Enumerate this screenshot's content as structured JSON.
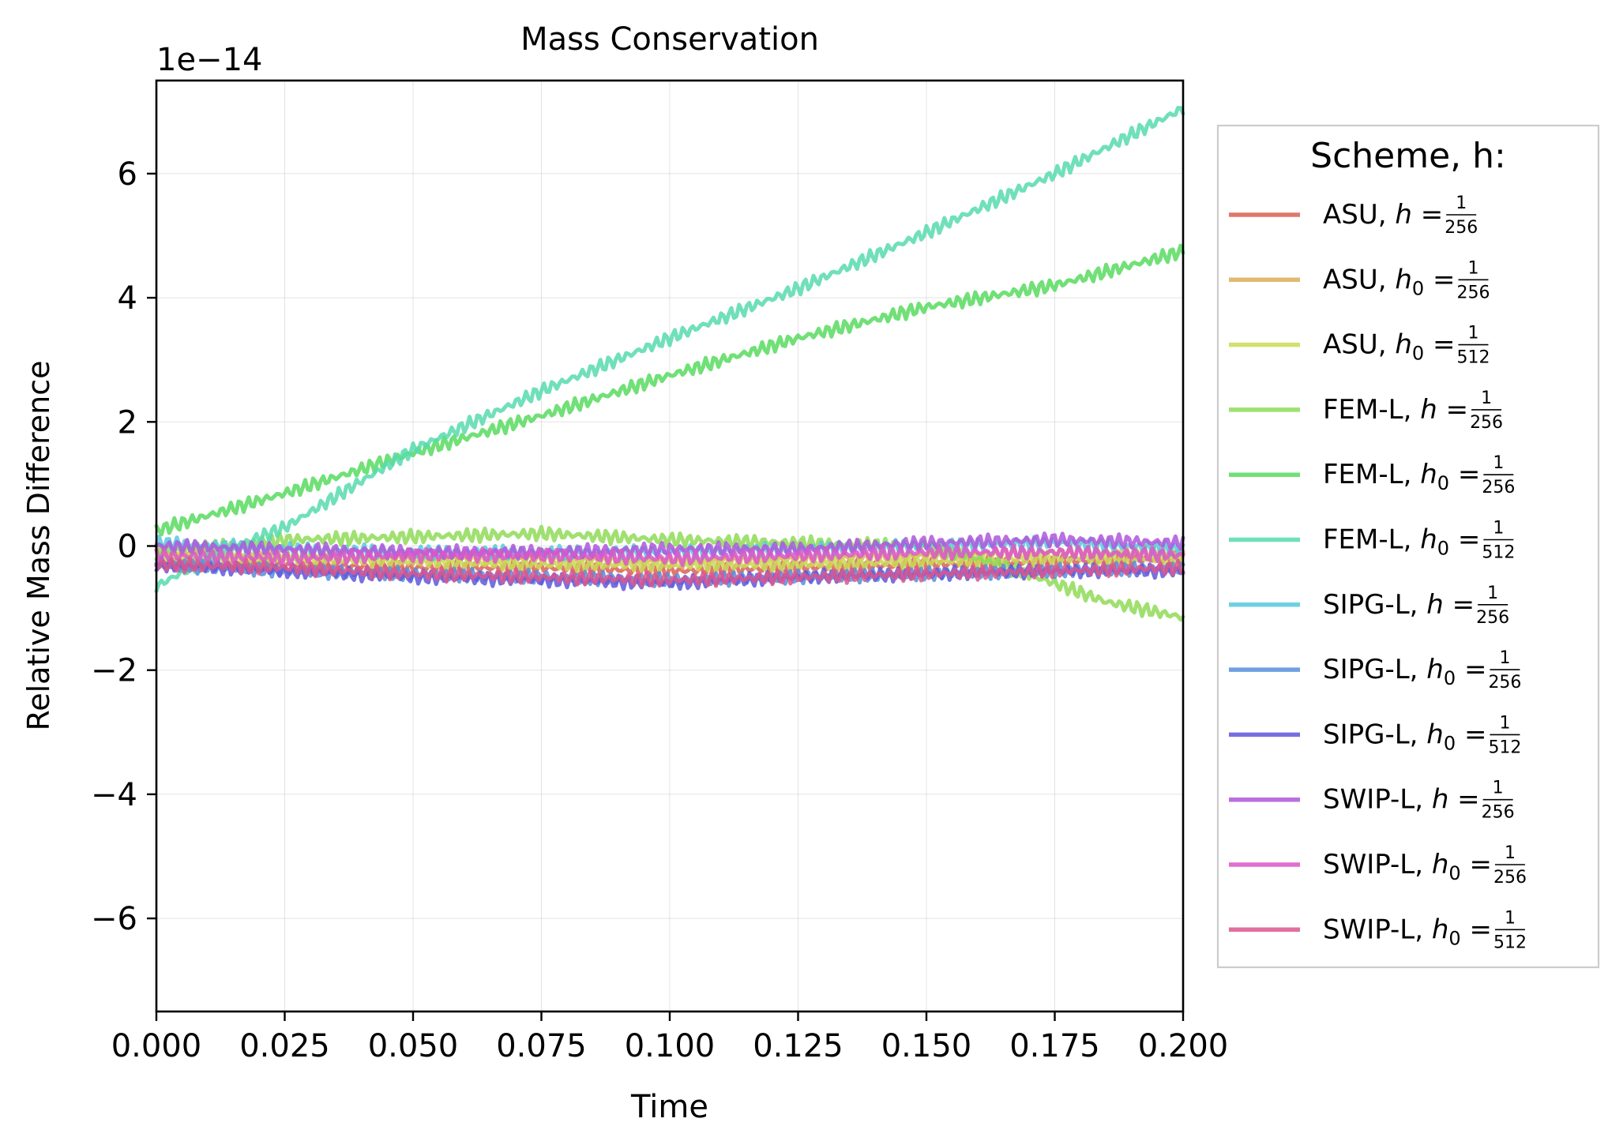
{
  "chart_data": {
    "type": "line",
    "title": "Mass Conservation",
    "xlabel": "Time",
    "ylabel": "Relative Mass Difference",
    "y_offset_label": "1e−14",
    "xlim": [
      0,
      0.2
    ],
    "ylim": [
      -7.5,
      7.5
    ],
    "xticks": [
      0,
      0.025,
      0.05,
      0.075,
      0.1,
      0.125,
      0.15,
      0.175,
      0.2
    ],
    "xtick_labels": [
      "0.000",
      "0.025",
      "0.050",
      "0.075",
      "0.100",
      "0.125",
      "0.150",
      "0.175",
      "0.200"
    ],
    "yticks": [
      -6,
      -4,
      -2,
      0,
      2,
      4,
      6
    ],
    "ytick_labels": [
      "−6",
      "−4",
      "−2",
      "0",
      "2",
      "4",
      "6"
    ],
    "grid": true,
    "legend_title": "Scheme, h:",
    "legend_location": "outside right",
    "series": [
      {
        "name": "ASU, h = 1/256",
        "scheme": "ASU",
        "sym": "h",
        "num": "1",
        "den": "256",
        "color": "#db5f57",
        "x": [
          0,
          0.025,
          0.05,
          0.075,
          0.1,
          0.125,
          0.15,
          0.175,
          0.2
        ],
        "values": [
          -0.3,
          -0.3,
          -0.35,
          -0.35,
          -0.4,
          -0.35,
          -0.3,
          -0.25,
          -0.2
        ]
      },
      {
        "name": "ASU, h0 = 1/256",
        "scheme": "ASU",
        "sym": "h0",
        "num": "1",
        "den": "256",
        "color": "#dbae57",
        "x": [
          0,
          0.025,
          0.05,
          0.075,
          0.1,
          0.125,
          0.15,
          0.175,
          0.2
        ],
        "values": [
          -0.1,
          -0.15,
          -0.2,
          -0.2,
          -0.25,
          -0.2,
          -0.15,
          -0.1,
          -0.1
        ]
      },
      {
        "name": "ASU, h0 = 1/512",
        "scheme": "ASU",
        "sym": "h0",
        "num": "1",
        "den": "512",
        "color": "#c9db57",
        "x": [
          0,
          0.025,
          0.05,
          0.075,
          0.1,
          0.125,
          0.15,
          0.175,
          0.2
        ],
        "values": [
          -0.2,
          -0.2,
          -0.25,
          -0.3,
          -0.3,
          -0.3,
          -0.25,
          -0.2,
          -0.2
        ]
      },
      {
        "name": "FEM-L, h = 1/256",
        "scheme": "FEM-L",
        "sym": "h",
        "num": "1",
        "den": "256",
        "color": "#8fdb57",
        "x": [
          0,
          0.025,
          0.05,
          0.075,
          0.1,
          0.125,
          0.15,
          0.16,
          0.175,
          0.185,
          0.2
        ],
        "values": [
          -0.1,
          0.1,
          0.15,
          0.2,
          0.1,
          0.05,
          0.0,
          -0.2,
          -0.6,
          -0.9,
          -1.15
        ]
      },
      {
        "name": "FEM-L, h0 = 1/256",
        "scheme": "FEM-L",
        "sym": "h0",
        "num": "1",
        "den": "256",
        "color": "#57db5f",
        "x": [
          0,
          0.025,
          0.05,
          0.075,
          0.1,
          0.125,
          0.15,
          0.175,
          0.2
        ],
        "values": [
          0.25,
          0.85,
          1.5,
          2.1,
          2.75,
          3.35,
          3.85,
          4.2,
          4.75
        ]
      },
      {
        "name": "FEM-L, h0 = 1/512",
        "scheme": "FEM-L",
        "sym": "h0",
        "num": "1",
        "den": "512",
        "color": "#57dbae",
        "x": [
          0,
          0.01,
          0.025,
          0.05,
          0.075,
          0.1,
          0.125,
          0.15,
          0.175,
          0.2
        ],
        "values": [
          -0.65,
          -0.2,
          0.3,
          1.55,
          2.5,
          3.35,
          4.15,
          5.05,
          6.0,
          7.05
        ]
      },
      {
        "name": "SIPG-L, h = 1/256",
        "scheme": "SIPG-L",
        "sym": "h",
        "num": "1",
        "den": "256",
        "color": "#57c9db",
        "x": [
          0,
          0.025,
          0.05,
          0.075,
          0.1,
          0.125,
          0.15,
          0.175,
          0.2
        ],
        "values": [
          0.05,
          -0.05,
          -0.1,
          -0.1,
          -0.1,
          -0.05,
          0.0,
          0.05,
          -0.05
        ]
      },
      {
        "name": "SIPG-L, h0 = 1/256",
        "scheme": "SIPG-L",
        "sym": "h0",
        "num": "1",
        "den": "256",
        "color": "#578fdb",
        "x": [
          0,
          0.025,
          0.05,
          0.075,
          0.1,
          0.125,
          0.15,
          0.175,
          0.2
        ],
        "values": [
          -0.3,
          -0.4,
          -0.45,
          -0.5,
          -0.55,
          -0.5,
          -0.45,
          -0.4,
          -0.35
        ]
      },
      {
        "name": "SIPG-L, h0 = 1/512",
        "scheme": "SIPG-L",
        "sym": "h0",
        "num": "1",
        "den": "512",
        "color": "#5f57db",
        "x": [
          0,
          0.025,
          0.05,
          0.075,
          0.1,
          0.125,
          0.15,
          0.175,
          0.2
        ],
        "values": [
          -0.3,
          -0.4,
          -0.5,
          -0.55,
          -0.6,
          -0.5,
          -0.45,
          -0.4,
          -0.4
        ]
      },
      {
        "name": "SWIP-L, h = 1/256",
        "scheme": "SWIP-L",
        "sym": "h",
        "num": "1",
        "den": "256",
        "color": "#ae57db",
        "x": [
          0,
          0.025,
          0.05,
          0.075,
          0.1,
          0.125,
          0.15,
          0.175,
          0.2
        ],
        "values": [
          0.0,
          -0.05,
          -0.1,
          -0.1,
          -0.05,
          -0.05,
          0.05,
          0.1,
          0.05
        ]
      },
      {
        "name": "SWIP-L, h0 = 1/256",
        "scheme": "SWIP-L",
        "sym": "h0",
        "num": "1",
        "den": "256",
        "color": "#db57c9",
        "x": [
          0,
          0.025,
          0.05,
          0.075,
          0.1,
          0.125,
          0.15,
          0.175,
          0.2
        ],
        "values": [
          -0.15,
          -0.2,
          -0.15,
          -0.15,
          -0.2,
          -0.15,
          -0.1,
          -0.1,
          -0.15
        ]
      },
      {
        "name": "SWIP-L, h0 = 1/512",
        "scheme": "SWIP-L",
        "sym": "h0",
        "num": "1",
        "den": "512",
        "color": "#db578f",
        "x": [
          0,
          0.025,
          0.05,
          0.075,
          0.1,
          0.125,
          0.15,
          0.175,
          0.2
        ],
        "values": [
          -0.3,
          -0.35,
          -0.45,
          -0.5,
          -0.55,
          -0.5,
          -0.45,
          -0.4,
          -0.35
        ]
      }
    ]
  }
}
